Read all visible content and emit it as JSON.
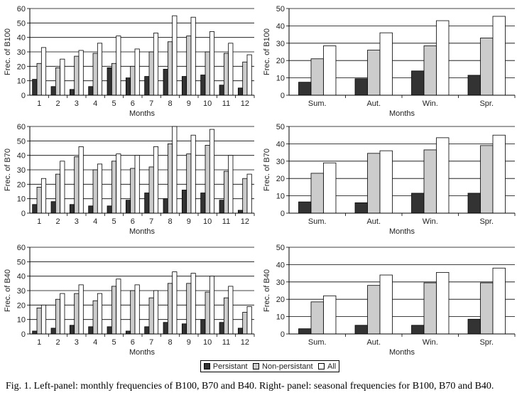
{
  "colors": {
    "persistant": "#333333",
    "non_persistant": "#cccccc",
    "all": "#ffffff"
  },
  "legend": {
    "persistant": "Persistant",
    "non_persistant": "Non-persistant",
    "all": "All"
  },
  "caption": "Fig. 1. Left-panel: monthly frequencies of B100, B70 and B40. Right- panel: seasonal frequencies for B100, B70 and B40.",
  "chart_data": [
    {
      "type": "bar",
      "ylabel": "Frec. of B100",
      "xlabel": "Months",
      "ylim": [
        0,
        60
      ],
      "yticks": [
        0,
        10,
        20,
        30,
        40,
        50,
        60
      ],
      "categories": [
        "1",
        "2",
        "3",
        "4",
        "5",
        "6",
        "7",
        "8",
        "9",
        "10",
        "11",
        "12"
      ],
      "series": [
        {
          "name": "Persistant",
          "values": [
            11,
            6,
            4,
            6,
            19,
            12,
            13,
            18,
            13,
            14,
            7,
            5
          ]
        },
        {
          "name": "Non-persistant",
          "values": [
            22,
            19,
            27,
            29,
            22,
            20,
            30,
            37,
            41,
            30,
            29,
            23
          ]
        },
        {
          "name": "All",
          "values": [
            33,
            25,
            31,
            36,
            41,
            32,
            43,
            55,
            54,
            44,
            36,
            28
          ]
        }
      ]
    },
    {
      "type": "bar",
      "ylabel": "Frec. of B100",
      "xlabel": "Months",
      "ylim": [
        0,
        50
      ],
      "yticks": [
        0,
        10,
        20,
        30,
        40,
        50
      ],
      "categories": [
        "Sum.",
        "Aut.",
        "Win.",
        "Spr."
      ],
      "series": [
        {
          "name": "Persistant",
          "values": [
            7.5,
            9.5,
            14,
            11.5
          ]
        },
        {
          "name": "Non-persistant",
          "values": [
            21,
            26,
            28.5,
            33
          ]
        },
        {
          "name": "All",
          "values": [
            28.5,
            36,
            43,
            45.5
          ]
        }
      ]
    },
    {
      "type": "bar",
      "ylabel": "Frec. of B70",
      "xlabel": "Months",
      "ylim": [
        0,
        60
      ],
      "yticks": [
        0,
        10,
        20,
        30,
        40,
        50,
        60
      ],
      "categories": [
        "1",
        "2",
        "3",
        "4",
        "5",
        "6",
        "7",
        "8",
        "9",
        "10",
        "11",
        "12"
      ],
      "series": [
        {
          "name": "Persistant",
          "values": [
            6,
            8,
            6,
            5,
            5,
            9,
            14,
            10,
            16,
            14,
            9,
            2
          ]
        },
        {
          "name": "Non-persistant",
          "values": [
            18,
            27,
            39,
            30,
            36,
            31,
            32,
            48,
            41,
            47,
            29,
            24
          ]
        },
        {
          "name": "All",
          "values": [
            24,
            36,
            46,
            34,
            41,
            40,
            46,
            60,
            54,
            58,
            40,
            27
          ]
        }
      ]
    },
    {
      "type": "bar",
      "ylabel": "Frec. of B70",
      "xlabel": "Months",
      "ylim": [
        0,
        50
      ],
      "yticks": [
        0,
        10,
        20,
        30,
        40,
        50
      ],
      "categories": [
        "Sum.",
        "Aut.",
        "Win.",
        "Spr."
      ],
      "series": [
        {
          "name": "Persistant",
          "values": [
            6.5,
            6,
            11.5,
            11.5
          ]
        },
        {
          "name": "Non-persistant",
          "values": [
            23,
            34.5,
            36.5,
            39
          ]
        },
        {
          "name": "All",
          "values": [
            29,
            36,
            43.5,
            45
          ]
        }
      ]
    },
    {
      "type": "bar",
      "ylabel": "Frec. of B40",
      "xlabel": "Months",
      "ylim": [
        0,
        60
      ],
      "yticks": [
        0,
        10,
        20,
        30,
        40,
        50,
        60
      ],
      "categories": [
        "1",
        "2",
        "3",
        "4",
        "5",
        "6",
        "7",
        "8",
        "9",
        "10",
        "11",
        "12"
      ],
      "series": [
        {
          "name": "Persistant",
          "values": [
            2,
            4,
            6,
            5,
            5,
            2,
            5,
            8,
            7,
            10,
            8,
            4
          ]
        },
        {
          "name": "Non-persistant",
          "values": [
            18,
            24,
            28,
            23,
            33,
            30,
            25,
            35,
            35,
            29,
            25,
            15
          ]
        },
        {
          "name": "All",
          "values": [
            20,
            28,
            34,
            28,
            38,
            34,
            30,
            43,
            42,
            40,
            33,
            19
          ]
        }
      ]
    },
    {
      "type": "bar",
      "ylabel": "Frec. of B40",
      "xlabel": "Months",
      "ylim": [
        0,
        50
      ],
      "yticks": [
        0,
        10,
        20,
        30,
        40,
        50
      ],
      "categories": [
        "Sum.",
        "Aut.",
        "Win.",
        "Spr."
      ],
      "series": [
        {
          "name": "Persistant",
          "values": [
            3,
            5,
            5,
            8.5
          ]
        },
        {
          "name": "Non-persistant",
          "values": [
            18.5,
            28,
            29.5,
            29.5
          ]
        },
        {
          "name": "All",
          "values": [
            22,
            34,
            35.5,
            38
          ]
        }
      ]
    }
  ]
}
